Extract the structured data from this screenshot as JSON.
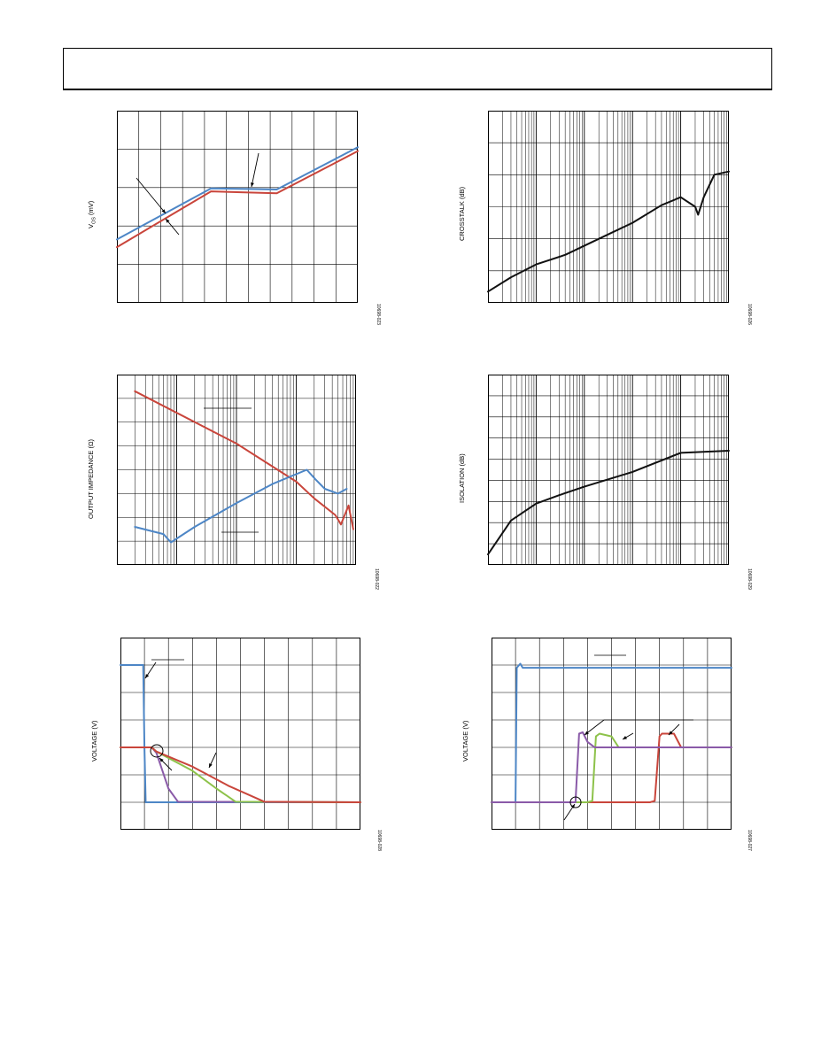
{
  "header": {},
  "colors": {
    "blue": "#4d86c6",
    "red": "#c9453b",
    "green": "#8dc24a",
    "purple": "#8a5aa8",
    "black": "#111111"
  },
  "chart_data": [
    {
      "id": "vos",
      "type": "line",
      "ylabel_main": "V",
      "ylabel_sub": "OS",
      "ylabel_unit": " (mV)",
      "fig_id": "10698-023",
      "xscale": "linear",
      "xlim": [
        0,
        11
      ],
      "ylim": [
        0,
        5
      ],
      "series": [
        {
          "color": "blue",
          "x": [
            0,
            4.3,
            7.3,
            11
          ],
          "y": [
            1.65,
            2.98,
            2.95,
            4.05
          ]
        },
        {
          "color": "red",
          "x": [
            0,
            4.3,
            7.3,
            11
          ],
          "y": [
            1.45,
            2.9,
            2.85,
            3.95
          ]
        }
      ]
    },
    {
      "id": "crosstalk",
      "type": "line",
      "ylabel": "CROSSTALK (dB)",
      "fig_id": "10698-026",
      "xscale": "log",
      "xlim": [
        1,
        100000
      ],
      "ylim": [
        0,
        6
      ],
      "series": [
        {
          "color": "black",
          "x": [
            1,
            3,
            10,
            40,
            200,
            1000,
            4000,
            10000,
            20000,
            23000,
            30000,
            50000,
            100000
          ],
          "y": [
            0.35,
            0.8,
            1.2,
            1.5,
            2.0,
            2.5,
            3.05,
            3.3,
            3.0,
            2.75,
            3.3,
            4.0,
            4.1
          ]
        }
      ]
    },
    {
      "id": "impedance",
      "type": "line",
      "ylabel": "OUTPUT IMPEDANCE (Ω)",
      "fig_id": "10698-022",
      "xscale": "log",
      "xlim": [
        1,
        10000
      ],
      "ylim": [
        0,
        8
      ],
      "series": [
        {
          "color": "red",
          "x": [
            2,
            100,
            1000,
            2000,
            4500,
            5600,
            7500,
            9000
          ],
          "y": [
            7.3,
            5.1,
            3.5,
            2.8,
            2.1,
            1.7,
            2.5,
            1.5
          ]
        },
        {
          "color": "blue",
          "x": [
            2,
            6,
            8,
            20,
            100,
            400,
            1500,
            2100,
            3000,
            5000,
            7000
          ],
          "y": [
            1.6,
            1.3,
            0.95,
            1.6,
            2.6,
            3.4,
            4.0,
            3.6,
            3.2,
            3.0,
            3.2
          ]
        }
      ]
    },
    {
      "id": "isolation",
      "type": "line",
      "ylabel": "ISOLATION (dB)",
      "fig_id": "10698-029",
      "xscale": "log",
      "xlim": [
        1,
        100000
      ],
      "ylim": [
        0,
        9
      ],
      "series": [
        {
          "color": "black",
          "x": [
            1,
            3,
            10,
            30,
            100,
            1000,
            10000,
            100000
          ],
          "y": [
            0.5,
            2.1,
            2.9,
            3.3,
            3.7,
            4.4,
            5.3,
            5.4
          ]
        }
      ]
    },
    {
      "id": "turnoff",
      "type": "line",
      "ylabel": "VOLTAGE (V)",
      "fig_id": "10698-028",
      "xscale": "linear",
      "xlim": [
        0,
        10
      ],
      "ylim": [
        0,
        7
      ],
      "series": [
        {
          "color": "blue",
          "x": [
            0,
            0.95,
            1.0,
            1.05,
            10
          ],
          "y": [
            6,
            6,
            3,
            1,
            1
          ]
        },
        {
          "color": "purple",
          "x": [
            0,
            1.3,
            1.5,
            2.0,
            2.4,
            10
          ],
          "y": [
            3,
            3,
            2.8,
            1.5,
            1.02,
            1
          ]
        },
        {
          "color": "green",
          "x": [
            0,
            1.3,
            1.5,
            3.0,
            4.0,
            4.8,
            10
          ],
          "y": [
            3,
            3,
            2.85,
            2.15,
            1.5,
            1.02,
            1
          ]
        },
        {
          "color": "red",
          "x": [
            0,
            1.3,
            1.5,
            3.0,
            4.5,
            6.0,
            10
          ],
          "y": [
            3,
            3,
            2.85,
            2.3,
            1.6,
            1.02,
            1
          ]
        }
      ]
    },
    {
      "id": "turnon",
      "type": "line",
      "ylabel": "VOLTAGE (V)",
      "fig_id": "10698-027",
      "xscale": "linear",
      "xlim": [
        0,
        10
      ],
      "ylim": [
        0,
        7
      ],
      "series": [
        {
          "color": "blue",
          "x": [
            0,
            1.0,
            1.05,
            1.2,
            1.3,
            10
          ],
          "y": [
            1,
            1,
            5.9,
            6.05,
            5.9,
            5.9
          ]
        },
        {
          "color": "red",
          "x": [
            0,
            6.6,
            6.8,
            7.0,
            7.1,
            7.6,
            7.9,
            10
          ],
          "y": [
            1,
            1,
            1.05,
            3.4,
            3.5,
            3.5,
            3.0,
            3.0
          ]
        },
        {
          "color": "green",
          "x": [
            0,
            4.0,
            4.2,
            4.35,
            4.5,
            5.0,
            5.3,
            10
          ],
          "y": [
            1,
            1,
            1.05,
            3.4,
            3.5,
            3.4,
            3.0,
            3.0
          ]
        },
        {
          "color": "purple",
          "x": [
            0,
            3.5,
            3.65,
            3.8,
            4.0,
            4.3,
            10
          ],
          "y": [
            1,
            1,
            3.5,
            3.55,
            3.2,
            3.0,
            3.0
          ]
        }
      ]
    }
  ]
}
